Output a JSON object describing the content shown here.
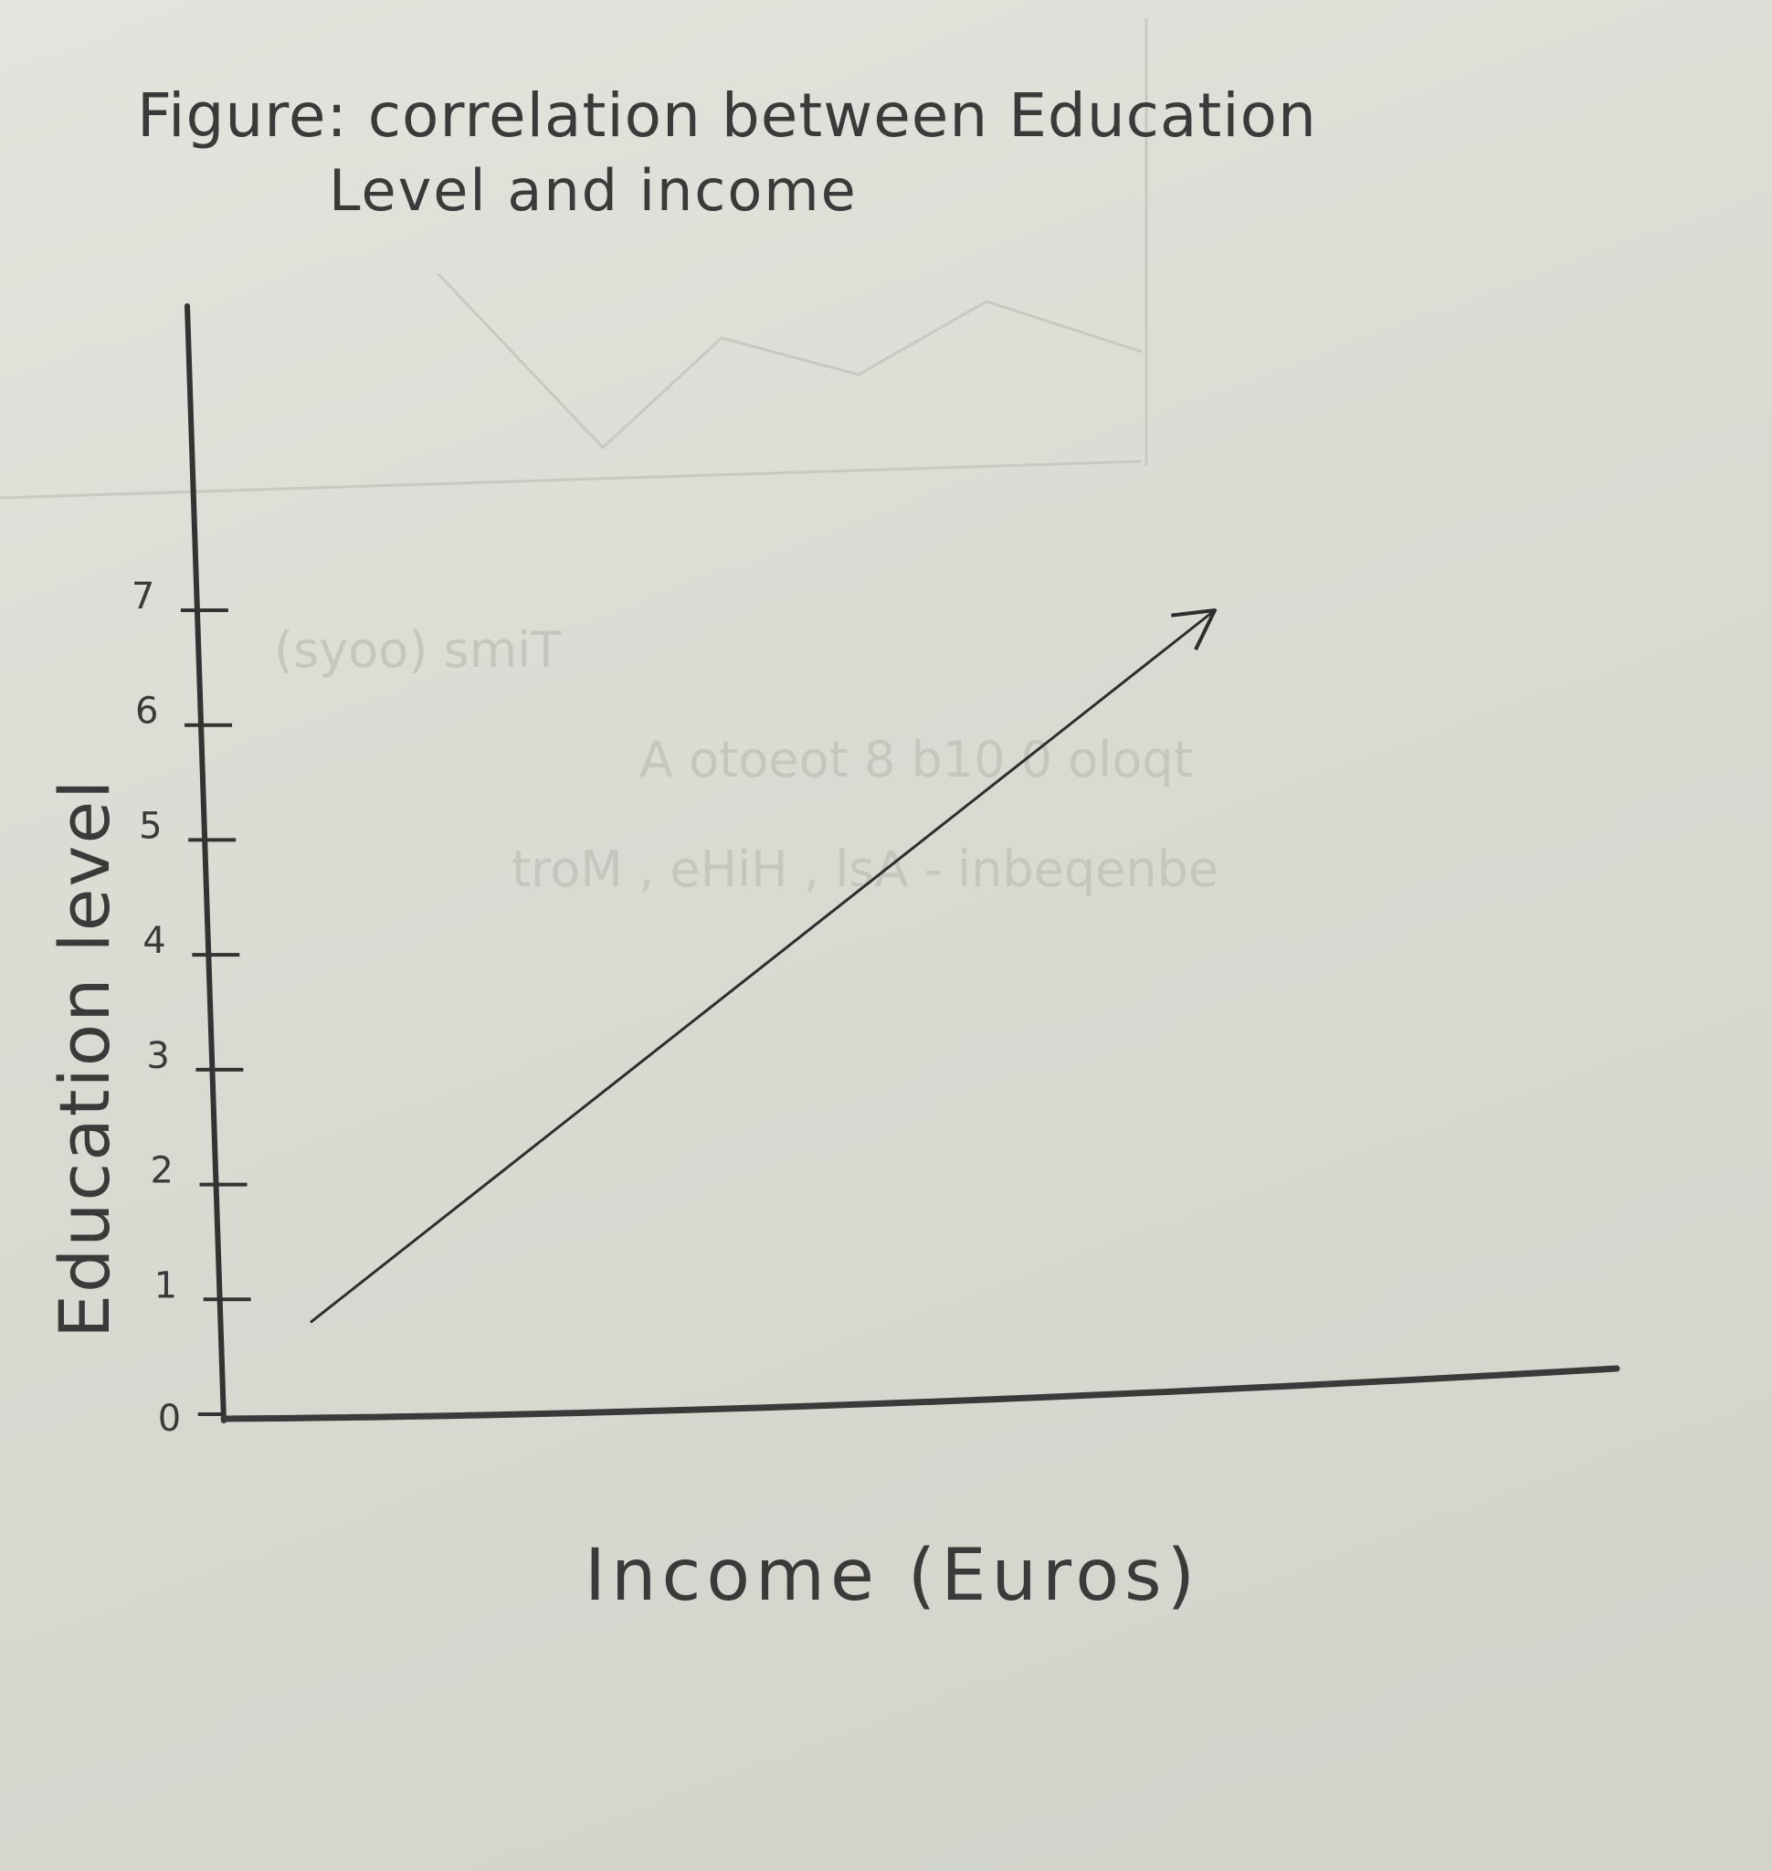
{
  "chart_data": {
    "type": "line",
    "title": "Figure: correlation between Education",
    "title_line2": "Level and income",
    "xlabel": "Income (Euros)",
    "ylabel": "Education level",
    "ylim": [
      0,
      7
    ],
    "yticks": [
      "0",
      "1",
      "2",
      "3",
      "4",
      "5",
      "6",
      "7"
    ],
    "grid": false,
    "series": [
      {
        "values": [
          0.8,
          7
        ],
        "arrow_end": true
      }
    ],
    "line_color": "#2e2e2e",
    "axis_color": "#333333"
  }
}
